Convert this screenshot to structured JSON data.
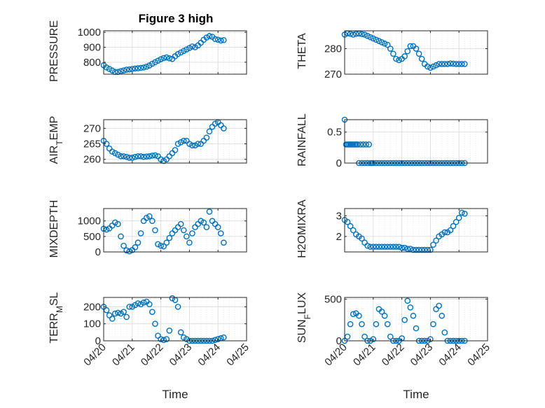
{
  "figure": {
    "title": "Figure 3 high",
    "colors": {
      "marker": "#0072BD",
      "axis": "#262626",
      "grid": "#dcdcdc",
      "background": "#ffffff"
    }
  },
  "chart_data": [
    {
      "type": "scatter",
      "ylabel": "PRESSURE",
      "yticks": [
        "800",
        "900",
        "1000"
      ],
      "ylim": [
        720,
        1010
      ],
      "xlim": [
        0,
        5
      ],
      "grid": true,
      "x": [
        0,
        0.1,
        0.2,
        0.3,
        0.4,
        0.5,
        0.6,
        0.7,
        0.8,
        0.9,
        1.0,
        1.1,
        1.2,
        1.3,
        1.4,
        1.5,
        1.6,
        1.7,
        1.8,
        1.9,
        2.0,
        2.1,
        2.2,
        2.3,
        2.4,
        2.5,
        2.6,
        2.7,
        2.8,
        2.9,
        3.0,
        3.1,
        3.2,
        3.3,
        3.4,
        3.5,
        3.6,
        3.7,
        3.8,
        3.9,
        4.0,
        4.1,
        4.2
      ],
      "y": [
        780,
        765,
        755,
        745,
        735,
        735,
        740,
        745,
        750,
        752,
        755,
        758,
        760,
        762,
        765,
        770,
        778,
        790,
        800,
        810,
        820,
        828,
        832,
        826,
        822,
        840,
        855,
        865,
        875,
        885,
        895,
        905,
        900,
        912,
        930,
        950,
        965,
        975,
        970,
        955,
        950,
        945,
        948
      ]
    },
    {
      "type": "scatter",
      "ylabel": "THETA",
      "yticks": [
        "270",
        "280"
      ],
      "ylim": [
        270,
        287
      ],
      "xlim": [
        0,
        5
      ],
      "grid": true,
      "x": [
        0,
        0.1,
        0.2,
        0.3,
        0.4,
        0.5,
        0.6,
        0.7,
        0.8,
        0.9,
        1.0,
        1.1,
        1.2,
        1.3,
        1.4,
        1.5,
        1.6,
        1.7,
        1.8,
        1.9,
        2.0,
        2.1,
        2.2,
        2.3,
        2.4,
        2.5,
        2.6,
        2.7,
        2.8,
        2.9,
        3.0,
        3.1,
        3.2,
        3.3,
        3.4,
        3.5,
        3.6,
        3.7,
        3.8,
        3.9,
        4.0,
        4.1,
        4.2
      ],
      "y": [
        285.5,
        286,
        285.8,
        285.5,
        285.8,
        285.9,
        285.7,
        285.5,
        285,
        284.5,
        284,
        283.5,
        283,
        282.5,
        282,
        281.5,
        280,
        278,
        276,
        275.5,
        276,
        277,
        279,
        281,
        281,
        280,
        278,
        276,
        274,
        273,
        272.5,
        273,
        273.5,
        274,
        274,
        274,
        274,
        274.2,
        274.1,
        274,
        274,
        274,
        274
      ]
    },
    {
      "type": "scatter",
      "ylabel": "AIR_TEMP",
      "yticks": [
        "260",
        "265",
        "270"
      ],
      "ylim": [
        258.8,
        272.8
      ],
      "xlim": [
        0,
        5
      ],
      "grid": true,
      "x": [
        0,
        0.1,
        0.2,
        0.3,
        0.4,
        0.5,
        0.6,
        0.7,
        0.8,
        0.9,
        1.0,
        1.1,
        1.2,
        1.3,
        1.4,
        1.5,
        1.6,
        1.7,
        1.8,
        1.9,
        2.0,
        2.1,
        2.2,
        2.3,
        2.4,
        2.5,
        2.6,
        2.7,
        2.8,
        2.9,
        3.0,
        3.1,
        3.2,
        3.3,
        3.4,
        3.5,
        3.6,
        3.7,
        3.8,
        3.9,
        4.0,
        4.1,
        4.2
      ],
      "y": [
        266,
        265,
        263.5,
        262.5,
        262,
        261.5,
        261,
        261,
        260.8,
        260.5,
        260.5,
        260.8,
        261,
        261,
        260.8,
        260.9,
        261,
        261.2,
        261.3,
        261,
        260,
        259.5,
        260,
        261,
        262,
        263,
        265,
        265.5,
        266,
        266,
        265,
        264.5,
        264.5,
        265,
        265,
        266,
        267,
        269,
        270.5,
        271.5,
        272,
        271,
        270
      ]
    },
    {
      "type": "scatter",
      "ylabel": "RAINFALL",
      "yticks": [
        "0",
        "0.5"
      ],
      "ylim": [
        0,
        0.7
      ],
      "xlim": [
        0,
        5
      ],
      "grid": true,
      "x": [
        0,
        0.05,
        0.1,
        0.15,
        0.2,
        0.25,
        0.3,
        0.35,
        0.4,
        0.45,
        0.5,
        0.55,
        0.6,
        0.65,
        0.7,
        0.75,
        0.8,
        0.85,
        0.9,
        0.95,
        1.0,
        1.1,
        1.2,
        1.3,
        1.4,
        1.5,
        1.6,
        1.7,
        1.8,
        1.9,
        2.0,
        2.1,
        2.2,
        2.3,
        2.4,
        2.5,
        2.6,
        2.7,
        2.8,
        2.9,
        3.0,
        3.1,
        3.2,
        3.3,
        3.4,
        3.5,
        3.6,
        3.7,
        3.8,
        3.9,
        4.0,
        4.1,
        4.2
      ],
      "y": [
        0.7,
        0.3,
        0.3,
        0.3,
        0.3,
        0.3,
        0.3,
        0.3,
        0.3,
        0.3,
        0,
        0.3,
        0,
        0.3,
        0,
        0.3,
        0,
        0.3,
        0,
        0,
        0,
        0,
        0,
        0,
        0,
        0,
        0,
        0,
        0,
        0,
        0,
        0,
        0,
        0,
        0,
        0,
        0,
        0,
        0,
        0,
        0,
        0,
        0,
        0,
        0,
        0,
        0,
        0,
        0,
        0,
        0,
        0,
        0
      ]
    },
    {
      "type": "scatter",
      "ylabel": "MIXDEPTH",
      "yticks": [
        "0",
        "500",
        "1000"
      ],
      "ylim": [
        0,
        1400
      ],
      "xlim": [
        0,
        5
      ],
      "grid": true,
      "x": [
        0,
        0.1,
        0.2,
        0.3,
        0.4,
        0.5,
        0.6,
        0.7,
        0.8,
        0.9,
        1.0,
        1.1,
        1.2,
        1.3,
        1.4,
        1.5,
        1.6,
        1.7,
        1.8,
        1.9,
        2.0,
        2.1,
        2.2,
        2.3,
        2.4,
        2.5,
        2.6,
        2.7,
        2.8,
        2.9,
        3.0,
        3.1,
        3.2,
        3.3,
        3.4,
        3.5,
        3.6,
        3.7,
        3.8,
        3.9,
        4.0,
        4.1,
        4.2
      ],
      "y": [
        750,
        720,
        760,
        850,
        950,
        900,
        500,
        200,
        50,
        20,
        60,
        150,
        300,
        600,
        1000,
        1100,
        1150,
        1000,
        700,
        250,
        200,
        180,
        300,
        450,
        600,
        700,
        800,
        900,
        700,
        500,
        300,
        600,
        800,
        900,
        1000,
        950,
        800,
        1300,
        1000,
        900,
        800,
        600,
        300
      ]
    },
    {
      "type": "scatter",
      "ylabel": "H2OMIXRA",
      "yticks": [
        "2",
        "3"
      ],
      "ylim": [
        1.25,
        3.35
      ],
      "xlim": [
        0,
        5
      ],
      "grid": true,
      "x": [
        0,
        0.1,
        0.2,
        0.3,
        0.4,
        0.5,
        0.6,
        0.7,
        0.8,
        0.9,
        1.0,
        1.1,
        1.2,
        1.3,
        1.4,
        1.5,
        1.6,
        1.7,
        1.8,
        1.9,
        2.0,
        2.1,
        2.2,
        2.3,
        2.4,
        2.5,
        2.6,
        2.7,
        2.8,
        2.9,
        3.0,
        3.1,
        3.2,
        3.3,
        3.4,
        3.5,
        3.6,
        3.7,
        3.8,
        3.9,
        4.0,
        4.1,
        4.2
      ],
      "y": [
        2.8,
        2.7,
        2.5,
        2.3,
        2.1,
        2,
        1.9,
        1.7,
        1.55,
        1.5,
        1.5,
        1.5,
        1.5,
        1.5,
        1.5,
        1.5,
        1.5,
        1.5,
        1.5,
        1.5,
        1.45,
        1.45,
        1.4,
        1.4,
        1.35,
        1.35,
        1.35,
        1.35,
        1.35,
        1.35,
        1.35,
        1.6,
        1.8,
        2,
        2.1,
        2.2,
        2.2,
        2.3,
        2.5,
        2.7,
        2.9,
        3.15,
        3.1
      ]
    },
    {
      "type": "scatter",
      "ylabel": "TERR_MSL",
      "yticks": [
        "0",
        "100",
        "200"
      ],
      "ylim": [
        0,
        255
      ],
      "xlim": [
        0,
        5
      ],
      "grid": true,
      "xticks": [
        "04/20",
        "04/21",
        "04/22",
        "04/23",
        "04/24",
        "04/25"
      ],
      "xlabel": "Time",
      "x": [
        0,
        0.1,
        0.2,
        0.3,
        0.4,
        0.5,
        0.6,
        0.7,
        0.8,
        0.9,
        1.0,
        1.1,
        1.2,
        1.3,
        1.4,
        1.5,
        1.6,
        1.7,
        1.8,
        1.9,
        2.0,
        2.1,
        2.2,
        2.3,
        2.4,
        2.5,
        2.6,
        2.7,
        2.8,
        2.9,
        3.0,
        3.1,
        3.2,
        3.3,
        3.4,
        3.5,
        3.6,
        3.7,
        3.8,
        3.9,
        4.0,
        4.1,
        4.2
      ],
      "y": [
        200,
        180,
        150,
        130,
        160,
        165,
        160,
        170,
        140,
        200,
        200,
        210,
        220,
        215,
        225,
        230,
        215,
        170,
        100,
        30,
        10,
        5,
        10,
        60,
        250,
        240,
        200,
        50,
        20,
        10,
        0,
        0,
        0,
        0,
        0,
        0,
        0,
        0,
        0,
        5,
        10,
        15,
        20
      ]
    },
    {
      "type": "scatter",
      "ylabel": "SUN_FLUX",
      "yticks": [
        "0",
        "500"
      ],
      "ylim": [
        0,
        520
      ],
      "xlim": [
        0,
        5
      ],
      "grid": true,
      "xticks": [
        "04/20",
        "04/21",
        "04/22",
        "04/23",
        "04/24",
        "04/25"
      ],
      "xlabel": "Time",
      "x": [
        0,
        0.1,
        0.2,
        0.3,
        0.4,
        0.5,
        0.6,
        0.7,
        0.8,
        0.9,
        1.0,
        1.1,
        1.2,
        1.3,
        1.4,
        1.5,
        1.6,
        1.7,
        1.8,
        1.9,
        2.0,
        2.1,
        2.2,
        2.3,
        2.4,
        2.5,
        2.6,
        2.7,
        2.8,
        2.9,
        3.0,
        3.1,
        3.2,
        3.3,
        3.4,
        3.5,
        3.6,
        3.7,
        3.8,
        3.9,
        4.0,
        4.1,
        4.2
      ],
      "y": [
        0,
        50,
        200,
        320,
        330,
        300,
        200,
        50,
        0,
        0,
        20,
        200,
        380,
        350,
        300,
        200,
        50,
        0,
        0,
        0,
        30,
        250,
        480,
        400,
        300,
        150,
        0,
        0,
        0,
        0,
        20,
        200,
        380,
        420,
        300,
        100,
        0,
        0,
        0,
        0,
        0,
        0,
        0
      ]
    }
  ]
}
